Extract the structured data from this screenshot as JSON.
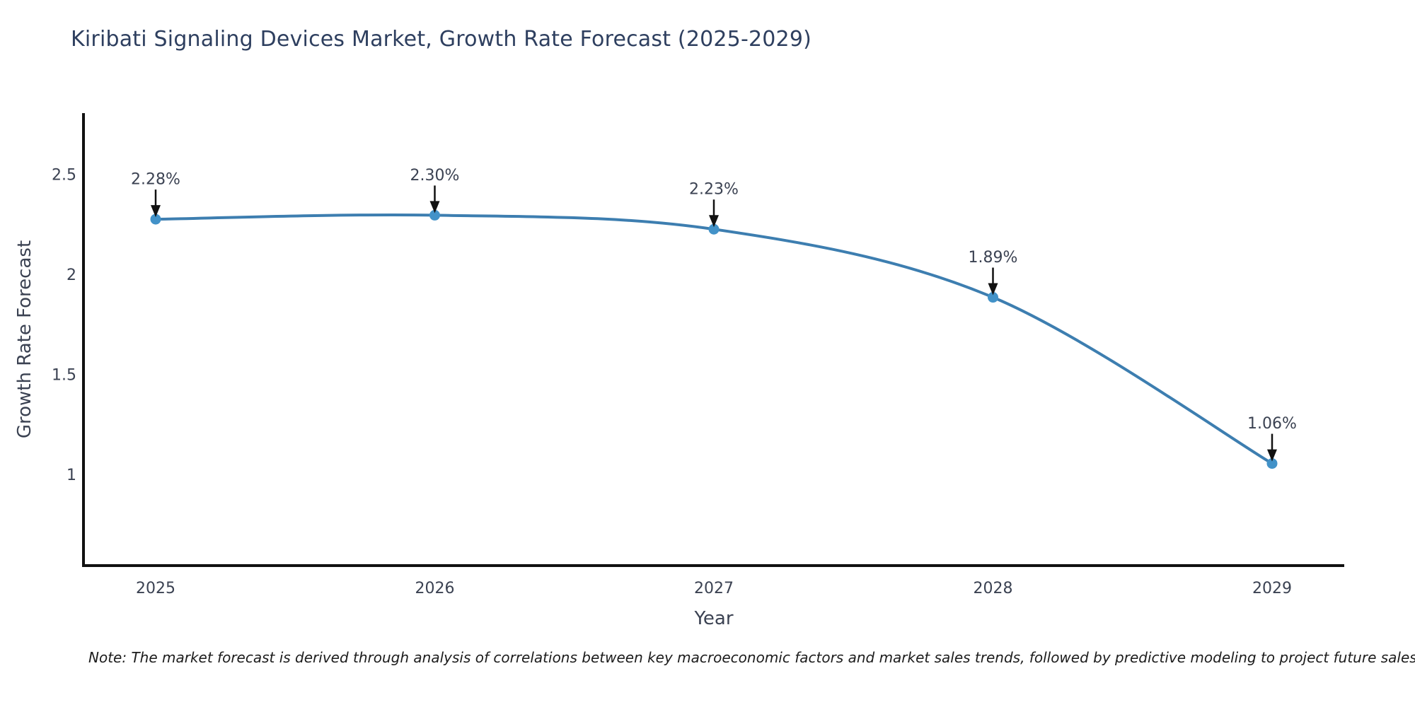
{
  "title": "Kiribati Signaling Devices Market, Growth Rate Forecast (2025-2029)",
  "note": {
    "text": "Note: The market forecast is derived through analysis of correlations between key macroeconomic factors and market sales trends, followed by predictive modeling to project future sales"
  },
  "chart_data": {
    "type": "line",
    "title": "Kiribati Signaling Devices Market, Growth Rate Forecast (2025-2029)",
    "xlabel": "Year",
    "ylabel": "Growth Rate Forecast",
    "x": [
      2025,
      2026,
      2027,
      2028,
      2029
    ],
    "xticks": [
      "2025",
      "2026",
      "2027",
      "2028",
      "2029"
    ],
    "series": [
      {
        "name": "Growth Rate Forecast",
        "values": [
          2.28,
          2.3,
          2.23,
          1.89,
          1.06
        ]
      }
    ],
    "point_labels": [
      "2.28%",
      "2.30%",
      "2.23%",
      "1.89%",
      "1.06%"
    ],
    "yticks": [
      1,
      1.5,
      2,
      2.5
    ],
    "ytick_labels": [
      "1",
      "1.5",
      "2",
      "2.5"
    ],
    "ylim": [
      0.55,
      2.81
    ],
    "grid": false,
    "legend": "none",
    "smooth": true,
    "colors": {
      "line": "#3d7eb0",
      "marker": "#4292c8",
      "axis": "#111111",
      "tick_text": "#3b4252",
      "annotation_text": "#3b4252",
      "arrow": "#111111",
      "title_text": "#2e3f5f",
      "background": "#ffffff"
    }
  }
}
